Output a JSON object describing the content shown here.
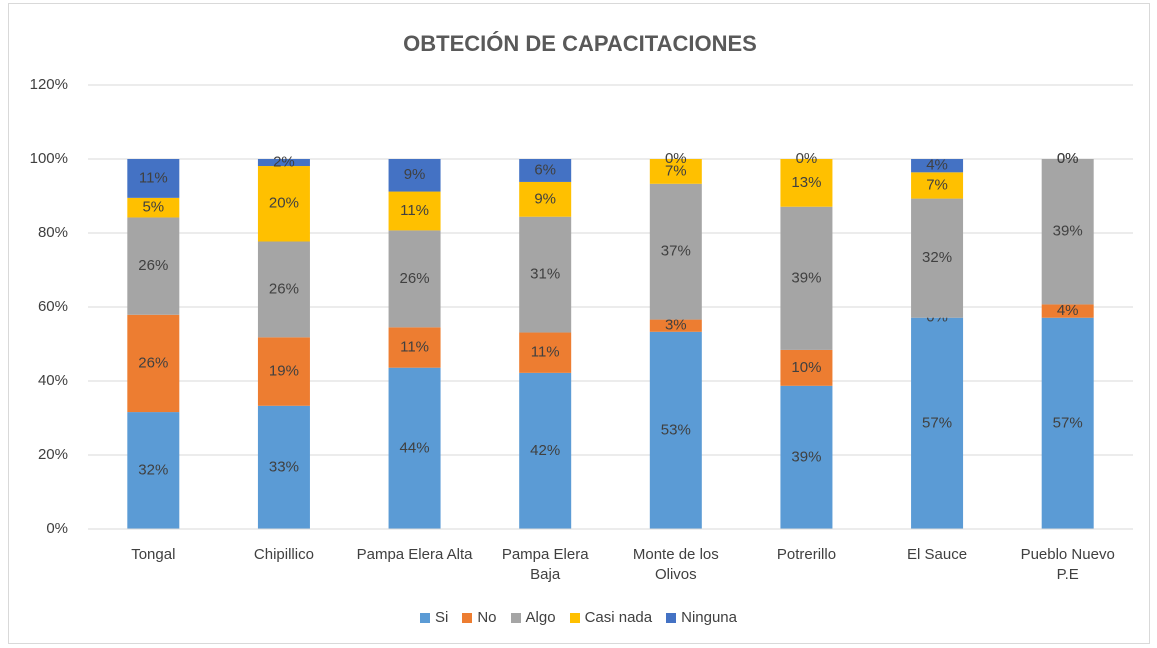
{
  "chart_data": {
    "type": "stacked_bar",
    "title": "OBTECIÓN DE CAPACITACIONES",
    "categories": [
      "Tongal",
      "Chipillico",
      "Pampa Elera Alta",
      "Pampa Elera Baja",
      "Monte de los Olivos",
      "Potrerillo",
      "El Sauce",
      "Pueblo Nuevo P.E"
    ],
    "series": [
      {
        "name": "Si",
        "color": "#5b9bd5",
        "values": [
          31.6,
          33.3,
          43.6,
          42.2,
          53.3,
          38.7,
          57.1,
          57.1
        ],
        "value_labels": [
          "32%",
          "33%",
          "44%",
          "42%",
          "53%",
          "39%",
          "57%",
          "57%"
        ]
      },
      {
        "name": "No",
        "color": "#ed7d31",
        "values": [
          26.3,
          18.5,
          10.9,
          10.9,
          3.3,
          9.7,
          0,
          3.6
        ],
        "value_labels": [
          "26%",
          "19%",
          "11%",
          "11%",
          "3%",
          "10%",
          "0%",
          "4%"
        ]
      },
      {
        "name": "Algo",
        "color": "#a5a5a5",
        "values": [
          26.3,
          25.9,
          26.2,
          31.3,
          36.7,
          38.7,
          32.2,
          39.3
        ],
        "value_labels": [
          "26%",
          "26%",
          "26%",
          "31%",
          "37%",
          "39%",
          "32%",
          "39%"
        ]
      },
      {
        "name": "Casi nada",
        "color": "#ffc000",
        "values": [
          5.3,
          20.4,
          10.5,
          9.4,
          6.7,
          12.9,
          7.1,
          0
        ],
        "value_labels": [
          "5%",
          "20%",
          "11%",
          "9%",
          "7%",
          "13%",
          "7%",
          "0%"
        ]
      },
      {
        "name": "Ninguna",
        "color": "#4472c4",
        "values": [
          10.5,
          1.9,
          8.8,
          6.2,
          0,
          0,
          3.6,
          0
        ],
        "value_labels": [
          "11%",
          "2%",
          "9%",
          "6%",
          "0%",
          "0%",
          "4%",
          "0%"
        ]
      }
    ],
    "ylim": [
      0,
      120
    ],
    "yticks": [
      {
        "value": 0,
        "label": "0%"
      },
      {
        "value": 20,
        "label": "20%"
      },
      {
        "value": 40,
        "label": "40%"
      },
      {
        "value": 60,
        "label": "60%"
      },
      {
        "value": 80,
        "label": "80%"
      },
      {
        "value": 100,
        "label": "100%"
      },
      {
        "value": 120,
        "label": "120%"
      }
    ],
    "grid": true,
    "legend": "bottom"
  }
}
